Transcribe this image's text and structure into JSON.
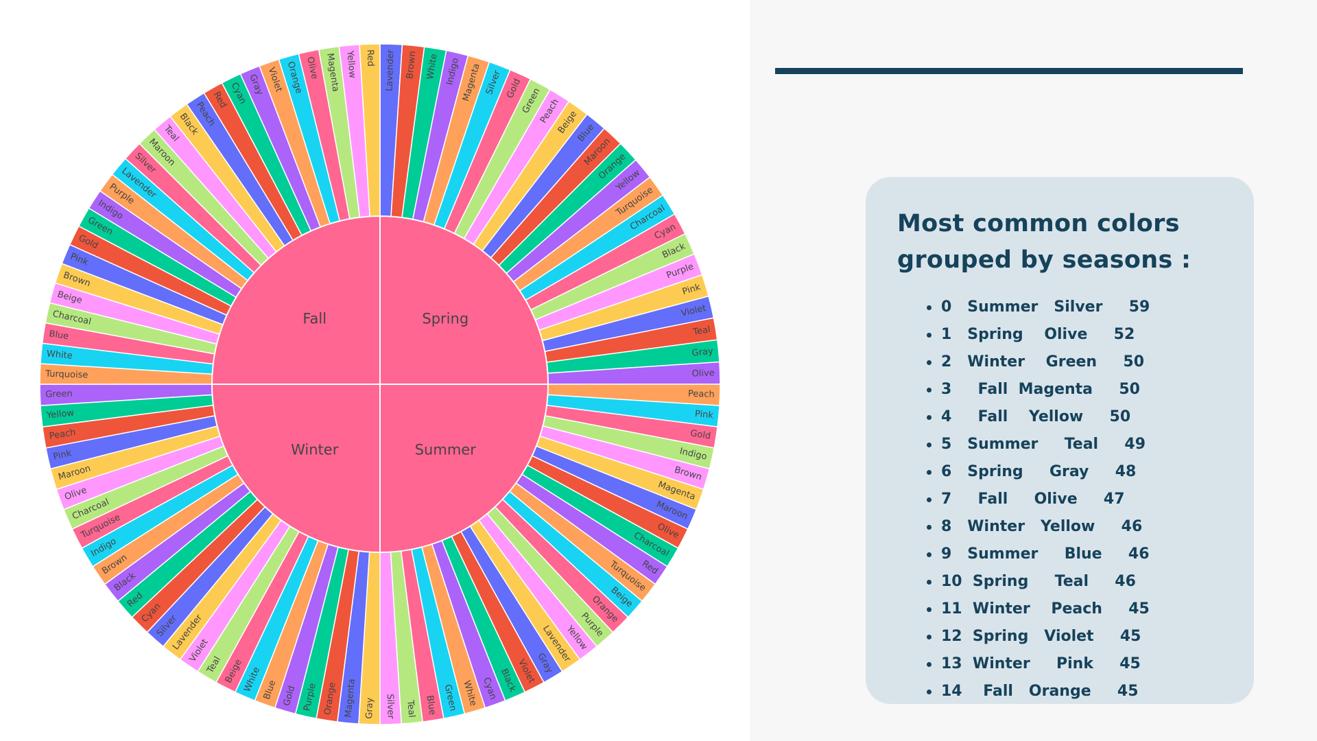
{
  "chart_data": {
    "type": "sunburst",
    "title": "",
    "inner": [
      {
        "name": "Spring",
        "color": "#ff6692"
      },
      {
        "name": "Summer",
        "color": "#ff6692"
      },
      {
        "name": "Winter",
        "color": "#ff6692"
      },
      {
        "name": "Fall",
        "color": "#ff6692"
      }
    ],
    "outer": {
      "Spring": [
        "Lavender",
        "Brown",
        "White",
        "Indigo",
        "Magenta",
        "Silver",
        "Gold",
        "Green",
        "Peach",
        "Beige",
        "Blue",
        "Maroon",
        "Orange",
        "Yellow",
        "Turquoise",
        "Charcoal",
        "Cyan",
        "Black",
        "Purple",
        "Pink",
        "Violet",
        "Teal",
        "Gray",
        "Olive"
      ],
      "Summer": [
        "Peach",
        "Pink",
        "Gold",
        "Indigo",
        "Brown",
        "Magenta",
        "Maroon",
        "Olive",
        "Charcoal",
        "Red",
        "Turquoise",
        "Beige",
        "Orange",
        "Purple",
        "Yellow",
        "Lavender",
        "Gray",
        "Violet",
        "Black",
        "Cyan",
        "White",
        "Green",
        "Blue",
        "Teal",
        "Silver"
      ],
      "Winter": [
        "Gray",
        "Magenta",
        "Orange",
        "Purple",
        "Gold",
        "Blue",
        "White",
        "Beige",
        "Teal",
        "Violet",
        "Lavender",
        "Silver",
        "Cyan",
        "Red",
        "Black",
        "Brown",
        "Indigo",
        "Turquoise",
        "Charcoal",
        "Olive",
        "Maroon",
        "Pink",
        "Peach",
        "Yellow",
        "Green"
      ],
      "Fall": [
        "Turquoise",
        "White",
        "Blue",
        "Charcoal",
        "Beige",
        "Brown",
        "Pink",
        "Gold",
        "Green",
        "Indigo",
        "Purple",
        "Lavender",
        "Silver",
        "Maroon",
        "Teal",
        "Black",
        "Peach",
        "Red",
        "Cyan",
        "Gray",
        "Violet",
        "Orange",
        "Olive",
        "Magenta",
        "Yellow",
        "Red"
      ]
    },
    "palette": [
      "#636efa",
      "#ef553b",
      "#00cc96",
      "#ab63fa",
      "#ffa15a",
      "#19d3f3",
      "#ff6692",
      "#b6e880",
      "#ff97ff",
      "#fecb52"
    ]
  },
  "panel": {
    "title_line1": "Most common colors",
    "title_line2": "grouped by seasons :",
    "rows": [
      "0   Summer   Silver     59",
      "1   Spring    Olive     52",
      "2   Winter    Green     50",
      "3     Fall  Magenta     50",
      "4     Fall    Yellow     50",
      "5   Summer     Teal     49",
      "6   Spring     Gray     48",
      "7     Fall     Olive     47",
      "8   Winter   Yellow     46",
      "9   Summer     Blue     46",
      "10  Spring     Teal     46",
      "11  Winter    Peach     45",
      "12  Spring   Violet     45",
      "13  Winter     Pink     45",
      "14    Fall   Orange     45"
    ]
  }
}
